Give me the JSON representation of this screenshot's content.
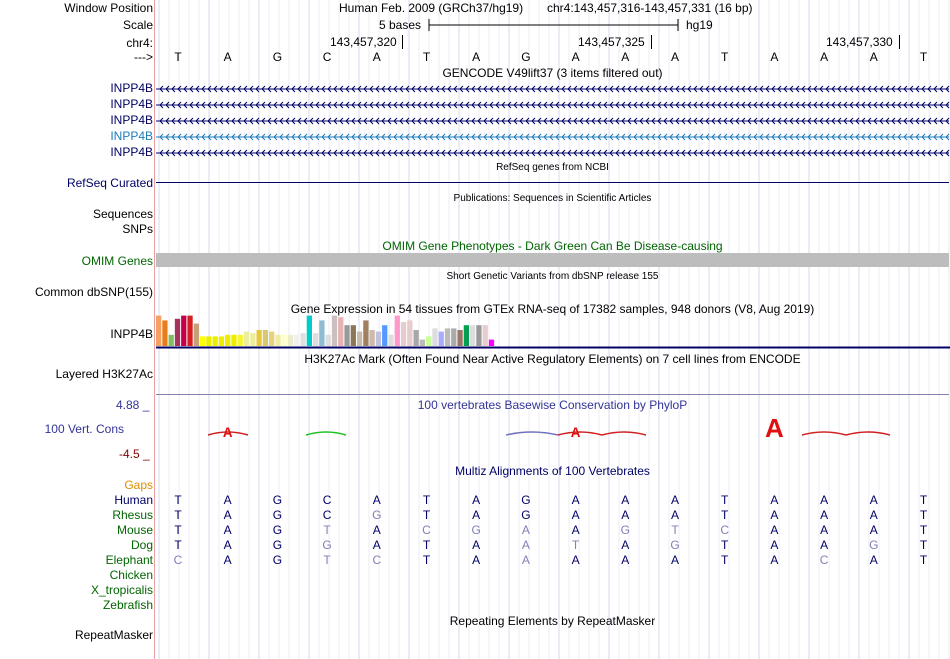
{
  "header": {
    "labels": [
      "Window Position",
      "Scale",
      "chr4:",
      "--->"
    ],
    "assembly": "Human Feb. 2009 (GRCh37/hg19)",
    "position": "chr4:143,457,316-143,457,331 (16 bp)",
    "scale_text": "5 bases",
    "scale_db": "hg19",
    "coords": [
      "143,457,320",
      "143,457,325",
      "143,457,330"
    ],
    "sequence": [
      "T",
      "A",
      "G",
      "C",
      "A",
      "T",
      "A",
      "G",
      "A",
      "A",
      "A",
      "T",
      "A",
      "A",
      "A",
      "T"
    ]
  },
  "gencode": {
    "title": "GENCODE V49lift37 (3 items filtered out)",
    "items": [
      "INPP4B",
      "INPP4B",
      "INPP4B",
      "INPP4B",
      "INPP4B"
    ],
    "highlight_index": 3,
    "colors": [
      "#000066",
      "#000066",
      "#000066",
      "#1c7ab8",
      "#000066"
    ]
  },
  "refseq": {
    "title": "RefSeq genes from NCBI",
    "label": "RefSeq Curated"
  },
  "publications": {
    "title": "Publications: Sequences in Scientific Articles",
    "labels": [
      "Sequences",
      "SNPs"
    ]
  },
  "omim": {
    "title": "OMIM Gene Phenotypes - Dark Green Can Be Disease-causing",
    "label": "OMIM Genes"
  },
  "dbsnp": {
    "title": "Short Genetic Variants from dbSNP release 155",
    "label": "Common dbSNP(155)"
  },
  "gtex": {
    "title": "Gene Expression in 54 tissues from GTEx RNA-seq of 17382 samples, 948 donors (V8, Aug 2019)",
    "label": "INPP4B",
    "bar_values": [
      0.95,
      0.8,
      0.35,
      0.85,
      0.95,
      0.95,
      0.7,
      0.3,
      0.3,
      0.3,
      0.3,
      0.35,
      0.35,
      0.35,
      0.45,
      0.4,
      0.5,
      0.5,
      0.45,
      0.35,
      0.35,
      0.35,
      0.35,
      0.4,
      0.95,
      0.4,
      0.8,
      0.35,
      0.95,
      0.9,
      0.65,
      0.65,
      0.45,
      0.8,
      0.5,
      0.45,
      0.65,
      0.35,
      0.95,
      0.75,
      0.8,
      0.5,
      0.2,
      0.3,
      0.55,
      0.45,
      0.55,
      0.55,
      0.5,
      0.65,
      0.65,
      0.65,
      0.65,
      0.2
    ],
    "bar_colors": [
      "#f5a064",
      "#e87e1a",
      "#7fbf5f",
      "#a8325e",
      "#c4004a",
      "#d42020",
      "#c8a078",
      "#ffff00",
      "#eded00",
      "#eded00",
      "#eded00",
      "#eded00",
      "#eded00",
      "#f5f533",
      "#ededa0",
      "#ededa0",
      "#e6c83c",
      "#d8c870",
      "#e6d27a",
      "#ededa0",
      "#ffffcc",
      "#ededcc",
      "#f0f0f0",
      "#e0e0e0",
      "#00cccc",
      "#dddddd",
      "#8fbcd0",
      "#dddddd",
      "#ccbfbf",
      "#e6b2b2",
      "#999999",
      "#8c7658",
      "#c8bbaa",
      "#a08060",
      "#ccbbaa",
      "#c0c0e0",
      "#5599ff",
      "#dddddd",
      "#ff99cc",
      "#e6cccc",
      "#e6cccc",
      "#a8a8a8",
      "#bbbbbb",
      "#c8ff99",
      "#dddddd",
      "#aaaaff",
      "#bbbbbb",
      "#aaaaaa",
      "#997766",
      "#00a050",
      "#dddddd",
      "#999999",
      "#e6cccc",
      "#ff00ff"
    ]
  },
  "h3k27ac": {
    "title": "H3K27Ac Mark (Often Found Near Active Regulatory Elements) on 7 cell lines from ENCODE",
    "label": "Layered H3K27Ac"
  },
  "phylop": {
    "title": "100 vertebrates Basewise Conservation by PhyloP",
    "label": "100 Vert. Cons",
    "ymax": "4.88 _",
    "ymin": "-4.5 _",
    "letters": [
      "",
      "A",
      "",
      "",
      "",
      "",
      "",
      "",
      "A",
      "",
      "",
      "",
      "A",
      "",
      "",
      ""
    ],
    "letter_sizes": [
      0,
      0.3,
      0,
      0,
      0,
      0,
      0,
      0,
      0.3,
      0,
      0,
      0,
      1,
      0,
      0,
      0
    ]
  },
  "multiz": {
    "title": "Multiz Alignments of 100 Vertebrates",
    "gaps_label": "Gaps",
    "species": [
      "Human",
      "Rhesus",
      "Mouse",
      "Dog",
      "Elephant",
      "Chicken",
      "X_tropicalis",
      "Zebrafish"
    ],
    "rows": [
      [
        "T",
        "A",
        "G",
        "C",
        "A",
        "T",
        "A",
        "G",
        "A",
        "A",
        "A",
        "T",
        "A",
        "A",
        "A",
        "T"
      ],
      [
        "T",
        "A",
        "G",
        "C",
        "G",
        "T",
        "A",
        "G",
        "A",
        "A",
        "A",
        "T",
        "A",
        "A",
        "A",
        "T"
      ],
      [
        "T",
        "A",
        "G",
        "T",
        "A",
        "C",
        "G",
        "A",
        "A",
        "G",
        "T",
        "C",
        "A",
        "A",
        "A",
        "T"
      ],
      [
        "T",
        "A",
        "G",
        "G",
        "A",
        "T",
        "A",
        "A",
        "T",
        "A",
        "G",
        "T",
        "A",
        "A",
        "G",
        "T"
      ],
      [
        "C",
        "A",
        "G",
        "T",
        "C",
        "T",
        "A",
        "A",
        "A",
        "A",
        "A",
        "T",
        "A",
        "C",
        "A",
        "T"
      ]
    ],
    "row_dim": [
      [
        0,
        0,
        0,
        0,
        0,
        0,
        0,
        0,
        0,
        0,
        0,
        0,
        0,
        0,
        0,
        0
      ],
      [
        0,
        0,
        0,
        0,
        1,
        0,
        0,
        0,
        0,
        0,
        0,
        0,
        0,
        0,
        0,
        0
      ],
      [
        0,
        0,
        0,
        1,
        0,
        1,
        1,
        1,
        0,
        1,
        1,
        1,
        0,
        0,
        0,
        0
      ],
      [
        0,
        0,
        0,
        1,
        0,
        0,
        0,
        1,
        1,
        0,
        1,
        0,
        0,
        0,
        1,
        0
      ],
      [
        1,
        0,
        0,
        1,
        1,
        0,
        0,
        1,
        0,
        0,
        0,
        0,
        0,
        1,
        0,
        0
      ]
    ]
  },
  "repeatmasker": {
    "title": "Repeating Elements by RepeatMasker",
    "label": "RepeatMasker"
  }
}
